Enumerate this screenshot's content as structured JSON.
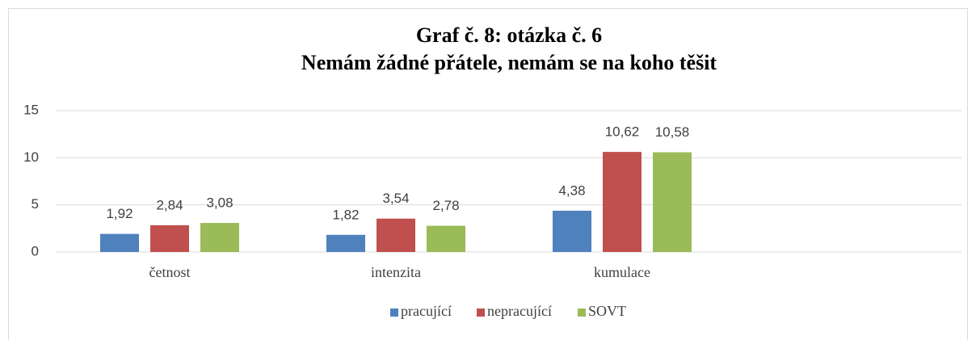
{
  "chart_data": {
    "type": "bar",
    "title": [
      "Graf č. 8: otázka č. 6",
      "Nemám žádné přátele, nemám se na koho těšit"
    ],
    "categories": [
      "četnost",
      "intenzita",
      "kumulace",
      null
    ],
    "series": [
      {
        "name": "pracující",
        "color": "#4f81bd",
        "values": [
          1.92,
          1.82,
          4.38,
          null
        ],
        "value_labels": [
          "1,92",
          "1,82",
          "4,38",
          null
        ]
      },
      {
        "name": "nepracující",
        "color": "#c0504d",
        "values": [
          2.84,
          3.54,
          10.62,
          null
        ],
        "value_labels": [
          "2,84",
          "3,54",
          "10,62",
          null
        ]
      },
      {
        "name": "SOVT",
        "color": "#9bbb59",
        "values": [
          3.08,
          2.78,
          10.58,
          null
        ],
        "value_labels": [
          "3,08",
          "2,78",
          "10,58",
          null
        ]
      }
    ],
    "ylim": [
      0,
      15
    ],
    "yticks": [
      0,
      5,
      10,
      15
    ],
    "grid": true,
    "legend": "bottom"
  }
}
